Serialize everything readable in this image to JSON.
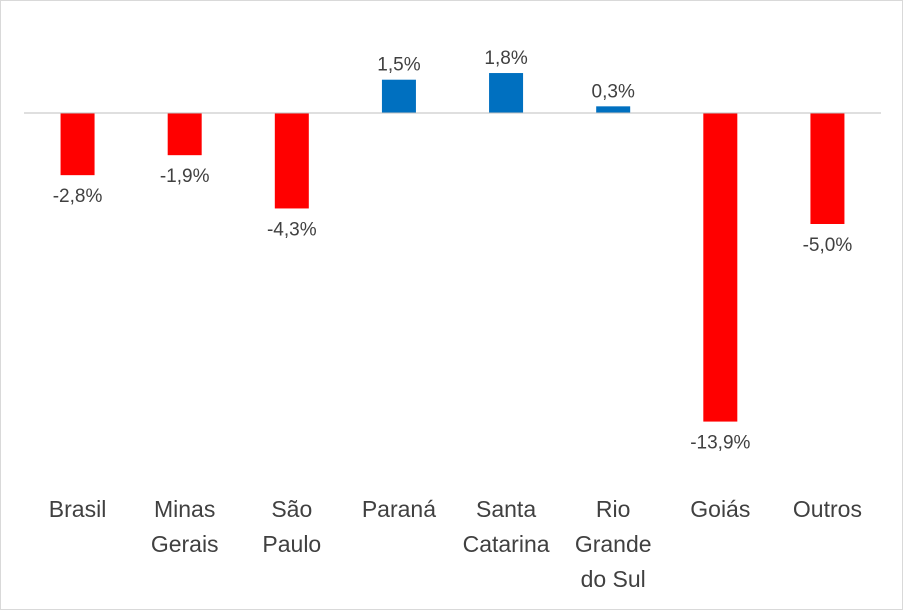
{
  "chart_data": {
    "type": "bar",
    "categories": [
      [
        "Brasil"
      ],
      [
        "Minas",
        "Gerais"
      ],
      [
        "São",
        "Paulo"
      ],
      [
        "Paraná"
      ],
      [
        "Santa",
        "Catarina"
      ],
      [
        "Rio",
        "Grande",
        "do Sul"
      ],
      [
        "Goiás"
      ],
      [
        "Outros"
      ]
    ],
    "values": [
      -2.8,
      -1.9,
      -4.3,
      1.5,
      1.8,
      0.3,
      -13.9,
      -5.0
    ],
    "data_labels": [
      "-2,8%",
      "-1,9%",
      "-4,3%",
      "1,5%",
      "1,8%",
      "0,3%",
      "-13,9%",
      "-5,0%"
    ],
    "colors": {
      "positive": "#0070c0",
      "negative": "#ff0000",
      "axis": "#bfbfbf"
    },
    "grid": false,
    "legend": "none"
  }
}
